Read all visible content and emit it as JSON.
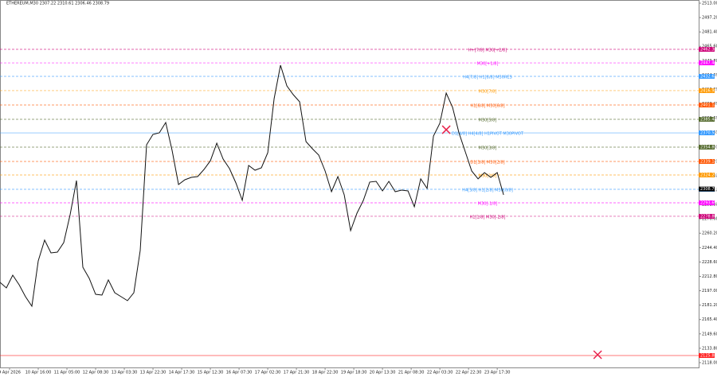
{
  "chart_data": {
    "type": "line",
    "title": "ETHEREUM,M30 2307.22 2310.61 2306.46 2308.79",
    "series": [
      {
        "color": "#111111",
        "values": [
          2206.2,
          2200.1,
          2214.1,
          2203.6,
          2190.5,
          2180.0,
          2229.8,
          2252.6,
          2238.6,
          2239.4,
          2249.9,
          2280.5,
          2318.1,
          2222.8,
          2210.6,
          2193.1,
          2192.2,
          2208.9,
          2194.9,
          2190.5,
          2186.1,
          2194.9,
          2241.2,
          2357.4,
          2368.8,
          2370.5,
          2381.9,
          2351.3,
          2313.7,
          2319.0,
          2321.6,
          2322.5,
          2330.3,
          2339.9,
          2359.2,
          2341.7,
          2331.2,
          2315.5,
          2296.3,
          2334.7,
          2329.5,
          2332.1,
          2348.7,
          2408.1,
          2444.8,
          2422.1,
          2412.5,
          2404.6,
          2360.9,
          2353.1,
          2346.1,
          2328.6,
          2305.9,
          2322.5,
          2302.4,
          2263.0,
          2282.3,
          2296.3,
          2316.4,
          2317.2,
          2306.7,
          2317.2,
          2305.9,
          2307.6,
          2306.7,
          2289.3,
          2319.9,
          2309.4,
          2367.0,
          2381.0,
          2414.2,
          2398.5,
          2370.5,
          2349.6,
          2328.6,
          2319.9,
          2326.8,
          2321.6,
          2326.8,
          2302.4
        ]
      }
    ],
    "xlim": [
      0,
      109.6
    ],
    "xticks": [
      {
        "value": 1.5,
        "label": "9 Apr 2026"
      },
      {
        "value": 6,
        "label": "10 Apr 16:00"
      },
      {
        "value": 10.5,
        "label": "11 Apr 05:00"
      },
      {
        "value": 15,
        "label": "12 Apr 08:30"
      },
      {
        "value": 19.5,
        "label": "13 Apr 03:30"
      },
      {
        "value": 24,
        "label": "13 Apr 22:30"
      },
      {
        "value": 28.5,
        "label": "14 Apr 17:30"
      },
      {
        "value": 33,
        "label": "15 Apr 12:30"
      },
      {
        "value": 37.5,
        "label": "16 Apr 07:30"
      },
      {
        "value": 42,
        "label": "17 Apr 02:30"
      },
      {
        "value": 46.5,
        "label": "17 Apr 21:30"
      },
      {
        "value": 51,
        "label": "18 Apr 22:30"
      },
      {
        "value": 55.5,
        "label": "19 Apr 18:30"
      },
      {
        "value": 60,
        "label": "20 Apr 13:30"
      },
      {
        "value": 64.5,
        "label": "21 Apr 08:30"
      },
      {
        "value": 69,
        "label": "22 Apr 03:30"
      },
      {
        "value": 73.5,
        "label": "22 Apr 22:30"
      },
      {
        "value": 78,
        "label": "23 Apr 17:30"
      }
    ],
    "ylim": [
      2112.7,
      2516.5
    ],
    "yticks": [
      {
        "value": 2513.0,
        "label": "2513.00"
      },
      {
        "value": 2497.2,
        "label": "2497.20"
      },
      {
        "value": 2481.4,
        "label": "2481.40"
      },
      {
        "value": 2465.6,
        "label": "2465.60"
      },
      {
        "value": 2449.8,
        "label": "2449.80"
      },
      {
        "value": 2434.0,
        "label": "2434.00"
      },
      {
        "value": 2418.2,
        "label": "2418.20"
      },
      {
        "value": 2402.4,
        "label": "2402.40"
      },
      {
        "value": 2386.6,
        "label": "2386.60"
      },
      {
        "value": 2370.8,
        "label": "2370.80"
      },
      {
        "value": 2355.0,
        "label": "2355.00"
      },
      {
        "value": 2339.2,
        "label": "2339.20"
      },
      {
        "value": 2323.4,
        "label": "2323.40"
      },
      {
        "value": 2307.6,
        "label": "2307.60"
      },
      {
        "value": 2291.8,
        "label": "2291.80"
      },
      {
        "value": 2276.0,
        "label": "2276.00"
      },
      {
        "value": 2260.2,
        "label": "2260.20"
      },
      {
        "value": 2244.4,
        "label": "2244.40"
      },
      {
        "value": 2228.6,
        "label": "2228.60"
      },
      {
        "value": 2212.8,
        "label": "2212.80"
      },
      {
        "value": 2197.0,
        "label": "2197.00"
      },
      {
        "value": 2181.2,
        "label": "2181.20"
      },
      {
        "value": 2165.4,
        "label": "2165.40"
      },
      {
        "value": 2149.6,
        "label": "2149.60"
      },
      {
        "value": 2133.8,
        "label": "2133.80"
      },
      {
        "value": 2118.0,
        "label": "2118.00"
      }
    ],
    "levels": [
      {
        "name": "H+[7/8] M30[+2/8]",
        "value": 2462.3,
        "label": "2462.30",
        "color": "#cc0077",
        "dashed": true
      },
      {
        "name": "M30[+1/8]",
        "value": 2447.4,
        "label": "2447.40",
        "color": "#ff00ff",
        "dashed": true
      },
      {
        "name": "H4[7/8] H1[8/8] M30RES",
        "value": 2432.6,
        "label": "2432.60",
        "color": "#3399ff",
        "dashed": true
      },
      {
        "name": "M30[7/8]",
        "value": 2416.9,
        "label": "2416.90",
        "color": "#ff9900",
        "dashed": true
      },
      {
        "name": "H1[6/8] M30[6/8]",
        "value": 2401.1,
        "label": "2401.10",
        "color": "#ff5500",
        "dashed": true
      },
      {
        "name": "M30[5/8]",
        "value": 2385.4,
        "label": "2385.40",
        "color": "#556b2f",
        "dashed": true
      },
      {
        "name": "D1[4/8] H4[4/8] H1PIVOT M30PIVOT",
        "value": 2370.5,
        "label": "2370.50",
        "color": "#3399ff",
        "dashed": false
      },
      {
        "name": "M30[3/8]",
        "value": 2354.8,
        "label": "2354.80",
        "color": "#556b2f",
        "dashed": true
      },
      {
        "name": "D1[3/8] M30[2/8]",
        "value": 2339.1,
        "label": "2339.10",
        "color": "#ff5500",
        "dashed": true
      },
      {
        "name": "M30[1/8]",
        "value": 2324.2,
        "label": "2324.20",
        "color": "#ff9900",
        "dashed": true
      },
      {
        "name": "H4[5/8] H1[2/8] M30[0/8]",
        "value": 2308.5,
        "label": "2308.50",
        "color": "#3399ff",
        "dashed": true
      },
      {
        "name": "M30[-1/8]",
        "value": 2293.6,
        "label": "2293.60",
        "color": "#ff00ff",
        "dashed": true
      },
      {
        "name": "H1[1/8] M30[-2/8]",
        "value": 2278.8,
        "label": "2278.80",
        "color": "#cc0077",
        "dashed": true
      },
      {
        "value": 2125.8,
        "label": "2125.80",
        "color": "#ff2222",
        "dashed": false
      }
    ],
    "current_price": {
      "value": 2308.79,
      "label": "2308.79",
      "color": "#000000"
    },
    "markers": [
      {
        "x": 70,
        "y": 2374.0,
        "color": "#e8204a"
      },
      {
        "x": 93.75,
        "y": 2126.7,
        "color": "#e8204a"
      }
    ],
    "grid": false
  }
}
